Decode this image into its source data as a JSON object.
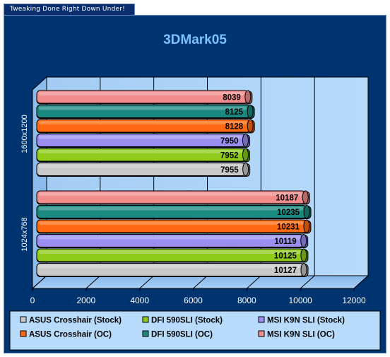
{
  "banner": {
    "text": "Tweaking Done Right Down Under!"
  },
  "chart_data": {
    "type": "bar",
    "orientation": "horizontal",
    "title": "3DMark05",
    "categories": [
      "1600x1200",
      "1024x768"
    ],
    "series": [
      {
        "name": "ASUS Crosshair (Stock)",
        "color": "#c9c9c9",
        "values": [
          7955,
          10127
        ]
      },
      {
        "name": "DFI 590SLI (Stock)",
        "color": "#8ecb1b",
        "values": [
          7952,
          10125
        ]
      },
      {
        "name": "MSI K9N SLI (Stock)",
        "color": "#9a8ff0",
        "values": [
          7950,
          10119
        ]
      },
      {
        "name": "ASUS Crosshair (OC)",
        "color": "#ff6a11",
        "values": [
          8128,
          10231
        ]
      },
      {
        "name": "DFI 590SLI (OC)",
        "color": "#1a8a80",
        "values": [
          8125,
          10235
        ]
      },
      {
        "name": "MSI K9N SLI (OC)",
        "color": "#f28c8c",
        "values": [
          8039,
          10187
        ]
      }
    ],
    "xlim": [
      0,
      12000
    ],
    "xticks": [
      "0",
      "2000",
      "4000",
      "6000",
      "8000",
      "10000",
      "12000"
    ],
    "grid": true,
    "legend_position": "bottom"
  }
}
